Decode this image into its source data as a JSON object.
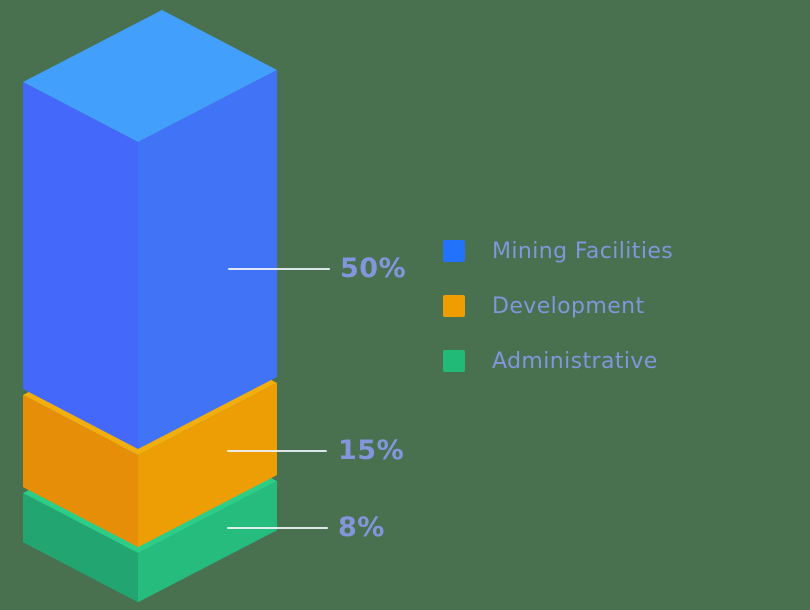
{
  "page": {
    "background_color": "#49704F",
    "text_color": "#8395DB"
  },
  "chart_data": {
    "type": "bar",
    "variant": "3d-isometric-stacked-column",
    "unit": "%",
    "legend_position": "right",
    "categories": [
      "Mining Facilities",
      "Development",
      "Administrative"
    ],
    "values": [
      50,
      15,
      8
    ],
    "series": [
      {
        "name": "Mining Facilities",
        "value": 50,
        "label": "50%",
        "color": "#2272FB",
        "faces": {
          "top": "#42A0FC",
          "left": "#4468FA",
          "right": "#4173F6"
        }
      },
      {
        "name": "Development",
        "value": 15,
        "label": "15%",
        "color": "#F09D02",
        "faces": {
          "top": "#F2AE0D",
          "left": "#E78E08",
          "right": "#EC9E04"
        }
      },
      {
        "name": "Administrative",
        "value": 8,
        "label": "8%",
        "color": "#22BA77",
        "faces": {
          "top": "#2CCE87",
          "left": "#23A572",
          "right": "#25BC7E"
        }
      }
    ],
    "callout_line_color": "#ECF2FA",
    "label_text_color": "#8395DB"
  }
}
